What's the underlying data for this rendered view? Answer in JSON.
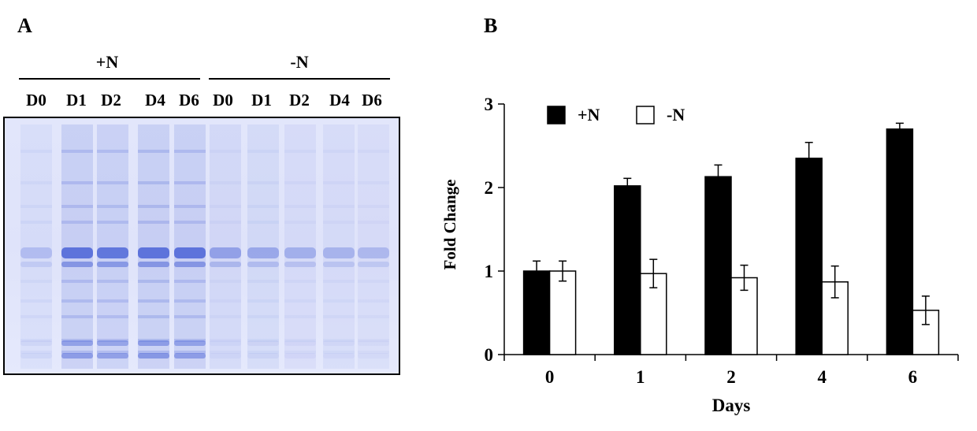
{
  "panelA": {
    "letter": "A",
    "group_plus": "+N",
    "group_minus": "-N",
    "lanes": [
      "D0",
      "D1",
      "D2",
      "D4",
      "D6",
      "D0",
      "D1",
      "D2",
      "D4",
      "D6"
    ],
    "gel_color": "#c8cff5",
    "band_color": "#4a63d6"
  },
  "panelB": {
    "letter": "B"
  },
  "chart_data": {
    "type": "bar",
    "categories": [
      "0",
      "1",
      "2",
      "4",
      "6"
    ],
    "series": [
      {
        "name": "+N",
        "values": [
          1.0,
          2.02,
          2.13,
          2.35,
          2.7
        ],
        "errors": [
          0.12,
          0.09,
          0.14,
          0.19,
          0.07
        ],
        "color": "#000000"
      },
      {
        "name": "-N",
        "values": [
          1.0,
          0.97,
          0.92,
          0.87,
          0.53
        ],
        "errors": [
          0.12,
          0.17,
          0.15,
          0.19,
          0.17
        ],
        "color": "#ffffff"
      }
    ],
    "xlabel": "Days",
    "ylabel": "Fold Change",
    "ylim": [
      0,
      3
    ],
    "yticks": [
      "0",
      "1",
      "2",
      "3"
    ],
    "legend": "top-left",
    "grid": false
  }
}
